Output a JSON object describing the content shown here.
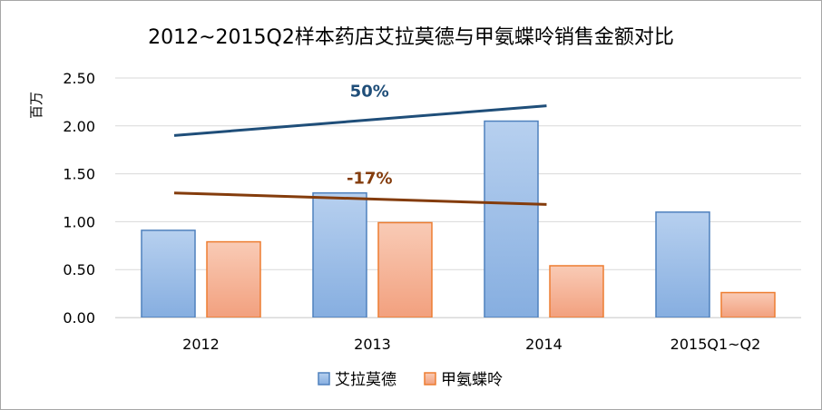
{
  "chart_data": {
    "type": "bar",
    "title": "2012~2015Q2样本药店艾拉莫德与甲氨蝶呤销售金额对比",
    "ylabel": "百万",
    "xlabel": "",
    "ylim": [
      0,
      2.5
    ],
    "yticks": [
      "0.00",
      "0.50",
      "1.00",
      "1.50",
      "2.00",
      "2.50"
    ],
    "ytick_values": [
      0,
      0.5,
      1.0,
      1.5,
      2.0,
      2.5
    ],
    "categories": [
      "2012",
      "2013",
      "2014",
      "2015Q1~Q2"
    ],
    "series": [
      {
        "name": "艾拉莫德",
        "values": [
          0.91,
          1.3,
          2.05,
          1.1
        ],
        "color": "#8fb4e3"
      },
      {
        "name": "甲氨蝶呤",
        "values": [
          0.79,
          0.99,
          0.54,
          0.26
        ],
        "color": "#f4a98a"
      }
    ],
    "grid": true,
    "legend_position": "bottom",
    "annotations": [
      {
        "text": "50%",
        "color": "#1f4e79",
        "from": {
          "category": "2012",
          "value": 1.9
        },
        "to": {
          "category": "2014",
          "value": 2.21
        }
      },
      {
        "text": "-17%",
        "color": "#843c0c",
        "from": {
          "category": "2012",
          "value": 1.3
        },
        "to": {
          "category": "2014",
          "value": 1.18
        }
      }
    ]
  }
}
